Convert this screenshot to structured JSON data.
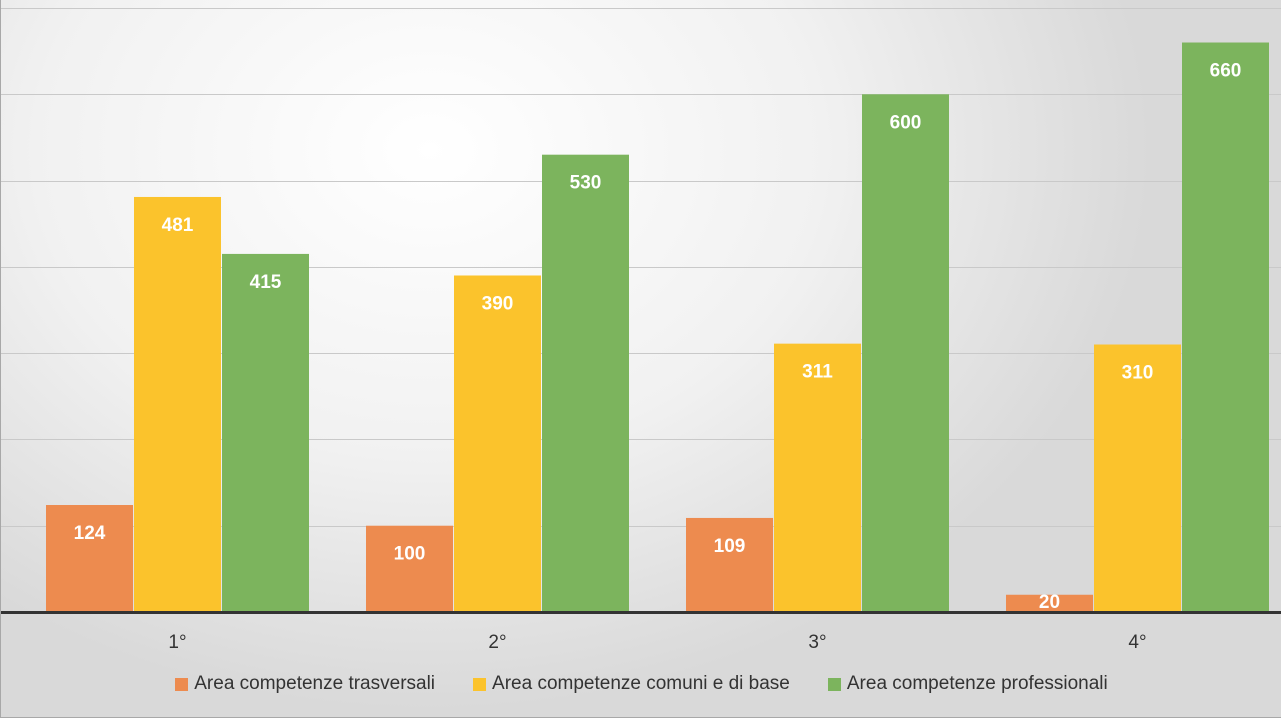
{
  "chart_data": {
    "type": "bar",
    "categories": [
      "1°",
      "2°",
      "3°",
      "4°"
    ],
    "series": [
      {
        "name": "Area competenze trasversali",
        "values": [
          124,
          100,
          109,
          20
        ],
        "color": "#ed8b4f"
      },
      {
        "name": "Area competenze comuni e di base",
        "values": [
          481,
          390,
          311,
          310
        ],
        "color": "#fbc32c"
      },
      {
        "name": "Area competenze professionali",
        "values": [
          415,
          530,
          600,
          660
        ],
        "color": "#7cb45d"
      }
    ],
    "title": "",
    "xlabel": "",
    "ylabel": "",
    "ylim": [
      0,
      700
    ],
    "y_grid_step": 100,
    "grid": true,
    "data_labels": true,
    "legend_position": "bottom"
  }
}
